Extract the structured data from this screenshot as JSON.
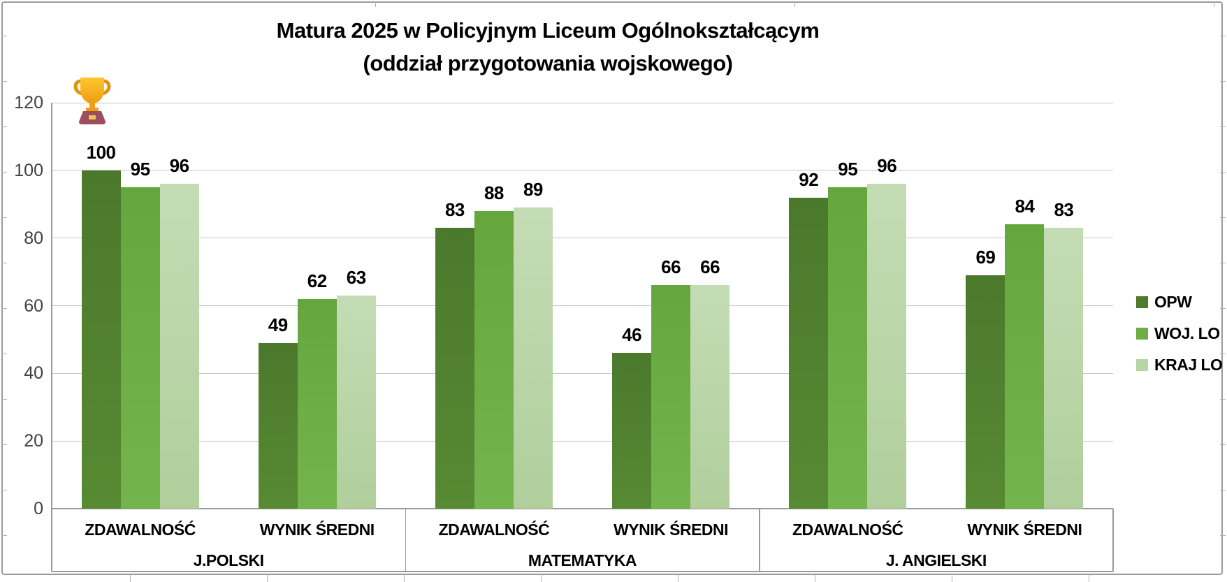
{
  "figure": {
    "title_line1": "Matura 2025 w Policyjnym Liceum Ogólnokształcącym",
    "title_line2": "(oddział przygotowania wojskowego)"
  },
  "legend": {
    "items": [
      {
        "label": "OPW",
        "color": "#4e7c2c"
      },
      {
        "label": "WOJ. LO",
        "color": "#6fae47"
      },
      {
        "label": "KRAJ LO",
        "color": "#bad5a5"
      }
    ]
  },
  "icons": {
    "trophy": "trophy-icon"
  },
  "chart_data": {
    "type": "bar",
    "title": "Matura 2025 w Policyjnym Liceum Ogólnokształcącym (oddział przygotowania wojskowego)",
    "ylim": [
      0,
      120
    ],
    "yticks": [
      0,
      20,
      40,
      60,
      80,
      100,
      120
    ],
    "grid": true,
    "legend_position": "right",
    "series": [
      {
        "name": "OPW",
        "color": "#4b792c",
        "color2": "#578a33"
      },
      {
        "name": "WOJ. LO",
        "color": "#66a63e",
        "color2": "#74b44c"
      },
      {
        "name": "KRAJ LO",
        "color": "#c4dcb4",
        "color2": "#b0cf9c"
      }
    ],
    "groups": [
      {
        "label": "J.POLSKI",
        "categories": [
          {
            "label": "ZDAWALNOŚĆ",
            "values": [
              100,
              95,
              96
            ]
          },
          {
            "label": "WYNIK ŚREDNI",
            "values": [
              49,
              62,
              63
            ]
          }
        ]
      },
      {
        "label": "MATEMATYKA",
        "categories": [
          {
            "label": "ZDAWALNOŚĆ",
            "values": [
              83,
              88,
              89
            ]
          },
          {
            "label": "WYNIK ŚREDNI",
            "values": [
              46,
              66,
              66
            ]
          }
        ]
      },
      {
        "label": "J. ANGIELSKI",
        "categories": [
          {
            "label": "ZDAWALNOŚĆ",
            "values": [
              92,
              95,
              96
            ]
          },
          {
            "label": "WYNIK ŚREDNI",
            "values": [
              69,
              84,
              83
            ]
          }
        ]
      }
    ],
    "annotation": {
      "icon": "trophy",
      "position": "above OPW bar, J.POLSKI ZDAWALNOŚĆ"
    }
  }
}
